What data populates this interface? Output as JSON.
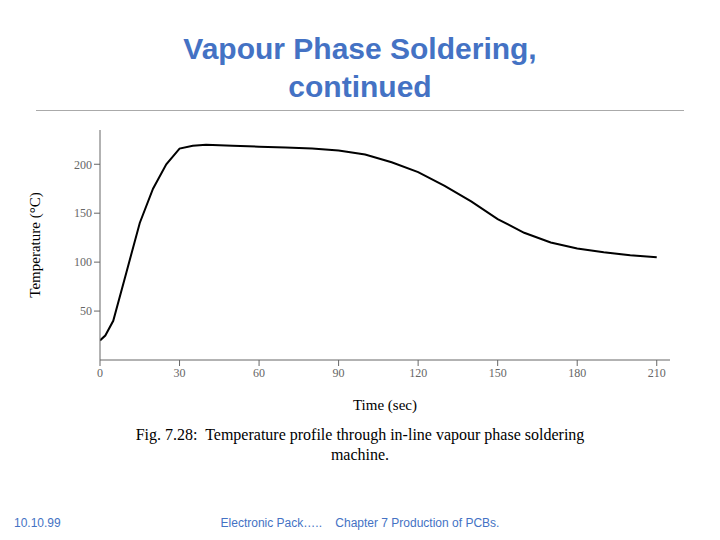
{
  "chart_data": {
    "type": "line",
    "title": "Vapour Phase Soldering,",
    "subtitle": "continued",
    "xlabel": "Time (sec)",
    "ylabel": "Temperature (°C)",
    "x": [
      0,
      2,
      5,
      10,
      15,
      20,
      25,
      30,
      35,
      40,
      50,
      60,
      70,
      80,
      90,
      100,
      110,
      120,
      130,
      140,
      150,
      160,
      170,
      180,
      190,
      200,
      205,
      210
    ],
    "values": [
      20,
      25,
      40,
      90,
      140,
      175,
      200,
      216,
      219,
      220,
      219,
      218,
      217,
      216,
      214,
      210,
      202,
      192,
      178,
      162,
      144,
      130,
      120,
      114,
      110,
      107,
      106,
      105
    ],
    "color": "#000000",
    "xlim": [
      0,
      215
    ],
    "ylim": [
      0,
      235
    ],
    "xticks": [
      0,
      30,
      60,
      90,
      120,
      150,
      180,
      210
    ],
    "yticks": [
      50,
      100,
      150,
      200
    ],
    "grid": false,
    "annotations": [
      "Fig. 7.28:  Temperature profile through in-line vapour phase soldering",
      "machine.",
      "10.10.99",
      "Electronic Pack…..    Chapter 7 Production of PCBs."
    ]
  }
}
